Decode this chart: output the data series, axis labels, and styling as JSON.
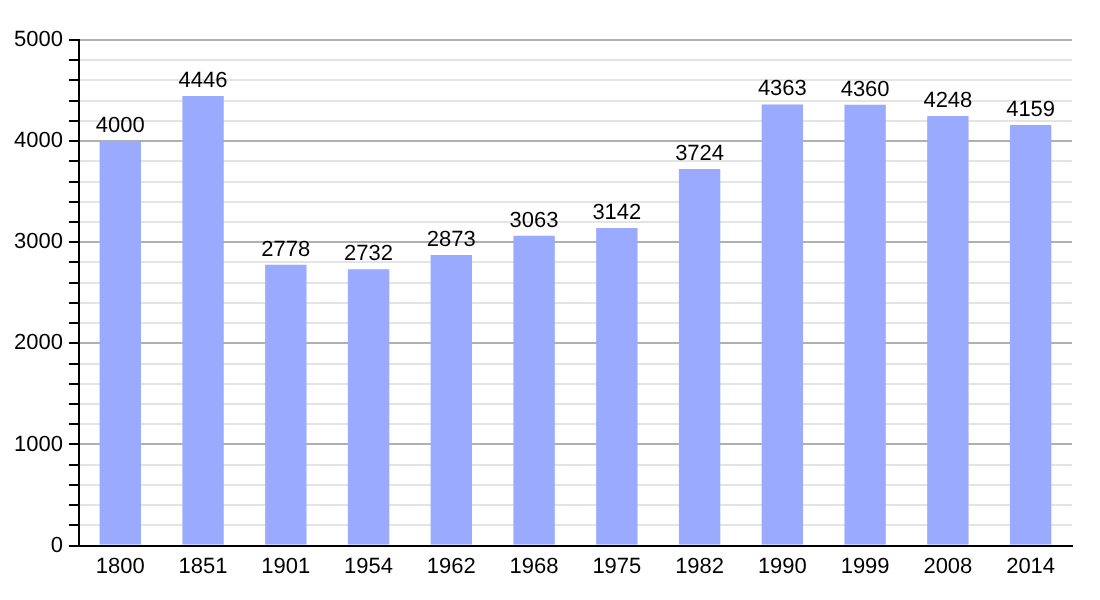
{
  "chart_data": {
    "type": "bar",
    "categories": [
      "1800",
      "1851",
      "1901",
      "1954",
      "1962",
      "1968",
      "1975",
      "1982",
      "1990",
      "1999",
      "2008",
      "2014"
    ],
    "values": [
      4000,
      4446,
      2778,
      2732,
      2873,
      3063,
      3142,
      3724,
      4363,
      4360,
      4248,
      4159
    ],
    "color": "#99aaff",
    "ylim": [
      0,
      5000
    ],
    "yticks": [
      0,
      {
        "value": 200,
        "label": null
      },
      {
        "value": 400,
        "label": null
      },
      {
        "value": 600,
        "label": null
      },
      {
        "value": 800,
        "label": null
      },
      1000,
      {
        "value": 1200,
        "label": null
      },
      {
        "value": 1400,
        "label": null
      },
      {
        "value": 1600,
        "label": null
      },
      {
        "value": 1800,
        "label": null
      },
      2000,
      {
        "value": 2200,
        "label": null
      },
      {
        "value": 2400,
        "label": null
      },
      {
        "value": 2600,
        "label": null
      },
      {
        "value": 2800,
        "label": null
      },
      3000,
      {
        "value": 3200,
        "label": null
      },
      {
        "value": 3400,
        "label": null
      },
      {
        "value": 3600,
        "label": null
      },
      {
        "value": 3800,
        "label": null
      },
      4000,
      {
        "value": 4200,
        "label": null
      },
      {
        "value": 4400,
        "label": null
      },
      {
        "value": 4600,
        "label": null
      },
      {
        "value": 4800,
        "label": null
      },
      5000
    ],
    "grid": "y",
    "data_labels": true,
    "legend": false
  }
}
